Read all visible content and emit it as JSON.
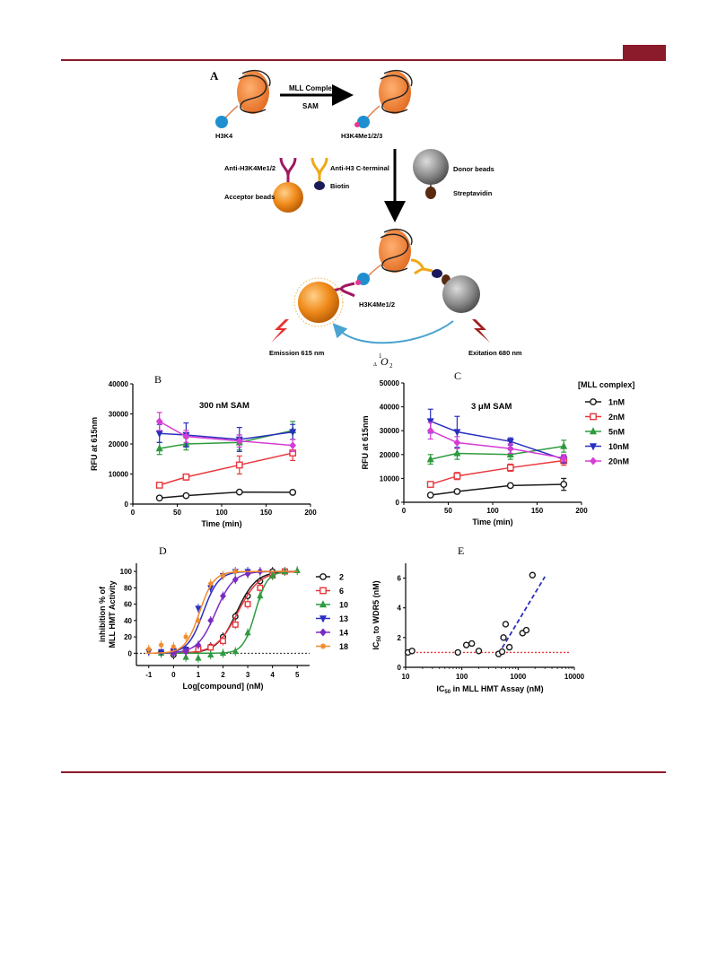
{
  "panels": {
    "A": {
      "letter": "A",
      "arrow_top": "MLL Complex",
      "arrow_bottom": "SAM",
      "left_label": "H3K4",
      "right_label": "H3K4Me1/2/3",
      "anti_me": "Anti-H3K4Me1/2",
      "acceptor": "Acceptor beads",
      "anti_cterm": "Anti-H3 C-terminal",
      "biotin": "Biotin",
      "donor": "Donor beads",
      "streptavidin": "Streptavidin",
      "complex_label": "H3K4Me1/2",
      "emission": "Emission 615 nm",
      "excitation": "Exitation 680 nm",
      "oxygen_sup": "1",
      "oxygen_sub": "Δ",
      "oxygen": "O",
      "oxygen_sub2": "2"
    },
    "B": {
      "letter": "B",
      "annotation": "300 nM SAM"
    },
    "C": {
      "letter": "C",
      "annotation": "3 μM  SAM",
      "legend_title": "[MLL complex]"
    },
    "D": {
      "letter": "D"
    },
    "E": {
      "letter": "E"
    }
  },
  "colors": {
    "black": "#1a1a1a",
    "red": "#e8383d",
    "green": "#2e9b3f",
    "blue": "#2a2fbf",
    "magenta": "#d63cd6",
    "purple": "#7b2bc2",
    "orange": "#f08a2a",
    "accent": "#8b1a2b"
  },
  "chart_data": [
    {
      "type": "line",
      "panel": "B",
      "xlabel": "Time (min)",
      "ylabel": "RFU at 615nm",
      "xlim": [
        0,
        200
      ],
      "ylim": [
        0,
        40000
      ],
      "xticks": [
        "0",
        "50",
        "100",
        "150",
        "200"
      ],
      "yticks": [
        "0",
        "10000",
        "20000",
        "30000",
        "40000"
      ],
      "x": [
        30,
        60,
        120,
        180
      ],
      "series": [
        {
          "name": "1nM",
          "color": "black",
          "marker": "circle",
          "values": [
            2000,
            2800,
            4000,
            3900
          ],
          "err": [
            300,
            300,
            300,
            300
          ]
        },
        {
          "name": "2nM",
          "color": "red",
          "marker": "square",
          "values": [
            6300,
            9000,
            13000,
            17000
          ],
          "err": [
            600,
            1000,
            3000,
            2500
          ]
        },
        {
          "name": "5nM",
          "color": "green",
          "marker": "triangle",
          "values": [
            18500,
            20000,
            20500,
            24500
          ],
          "err": [
            2000,
            2000,
            2500,
            3000
          ]
        },
        {
          "name": "10nM",
          "color": "blue",
          "marker": "triangle-down",
          "values": [
            23500,
            23000,
            21500,
            24000
          ],
          "err": [
            3000,
            4000,
            4000,
            2500
          ]
        },
        {
          "name": "20nM",
          "color": "magenta",
          "marker": "diamond",
          "values": [
            27500,
            22500,
            21000,
            19500
          ],
          "err": [
            3000,
            2000,
            2000,
            2000
          ]
        }
      ]
    },
    {
      "type": "line",
      "panel": "C",
      "xlabel": "Time (min)",
      "ylabel": "RFU at 615nm",
      "xlim": [
        0,
        200
      ],
      "ylim": [
        0,
        50000
      ],
      "xticks": [
        "0",
        "50",
        "100",
        "150",
        "200"
      ],
      "yticks": [
        "0",
        "10000",
        "20000",
        "30000",
        "40000",
        "50000"
      ],
      "x": [
        30,
        60,
        120,
        180
      ],
      "series": [
        {
          "name": "1nM",
          "color": "black",
          "marker": "circle",
          "values": [
            3000,
            4500,
            7000,
            7500
          ],
          "err": [
            500,
            500,
            500,
            2500
          ]
        },
        {
          "name": "2nM",
          "color": "red",
          "marker": "square",
          "values": [
            7500,
            11000,
            14500,
            17500
          ],
          "err": [
            500,
            1500,
            1500,
            2000
          ]
        },
        {
          "name": "5nM",
          "color": "green",
          "marker": "triangle",
          "values": [
            18000,
            20500,
            20000,
            23500
          ],
          "err": [
            2000,
            2500,
            2000,
            2500
          ]
        },
        {
          "name": "10nM",
          "color": "blue",
          "marker": "triangle-down",
          "values": [
            34000,
            29500,
            25500,
            18000
          ],
          "err": [
            5000,
            6500,
            1500,
            1500
          ]
        },
        {
          "name": "20nM",
          "color": "magenta",
          "marker": "diamond",
          "values": [
            30000,
            25000,
            22500,
            18500
          ],
          "err": [
            3500,
            2500,
            2000,
            1500
          ]
        }
      ]
    },
    {
      "type": "scatter",
      "panel": "D",
      "xlabel": "Log[compound] (nM)",
      "ylabel": "inhibition % of MLL HMT Activity",
      "xlim": [
        -1.5,
        5.5
      ],
      "ylim": [
        -15,
        110
      ],
      "xticks": [
        "-1",
        "0",
        "1",
        "2",
        "3",
        "4",
        "5"
      ],
      "yticks": [
        "0",
        "20",
        "40",
        "60",
        "80",
        "100"
      ],
      "series": [
        {
          "name": "2",
          "color": "black",
          "marker": "circle",
          "ic50": 2.55,
          "hill": 1.1,
          "x": [
            -0.5,
            0,
            0.5,
            1,
            1.5,
            2,
            2.5,
            3,
            3.5,
            4
          ],
          "values": [
            1,
            -2,
            3,
            5,
            8,
            20,
            45,
            70,
            88,
            100
          ]
        },
        {
          "name": "6",
          "color": "red",
          "marker": "square",
          "ic50": 2.6,
          "hill": 1.0,
          "x": [
            0,
            0.5,
            1,
            1.5,
            2,
            2.5,
            3,
            3.5,
            4,
            4.5
          ],
          "values": [
            2,
            3,
            5,
            7,
            15,
            35,
            60,
            80,
            95,
            100
          ]
        },
        {
          "name": "10",
          "color": "green",
          "marker": "triangle",
          "ic50": 3.3,
          "hill": 1.8,
          "x": [
            -0.5,
            0,
            0.5,
            1,
            1.5,
            2,
            2.5,
            3,
            3.5,
            4,
            4.5,
            5
          ],
          "values": [
            0,
            2,
            -5,
            -6,
            -2,
            0,
            2,
            25,
            70,
            95,
            100,
            101
          ]
        },
        {
          "name": "13",
          "color": "blue",
          "marker": "triangle-down",
          "ic50": 1.2,
          "hill": 1.4,
          "x": [
            -1,
            -0.5,
            0,
            0.5,
            1,
            1.5,
            2,
            2.5,
            3
          ],
          "values": [
            2,
            2,
            3,
            5,
            55,
            80,
            95,
            100,
            100
          ]
        },
        {
          "name": "14",
          "color": "purple",
          "marker": "diamond",
          "ic50": 1.7,
          "hill": 1.2,
          "x": [
            0,
            0.5,
            1,
            1.5,
            2,
            2.5,
            3,
            3.5
          ],
          "values": [
            0,
            2,
            10,
            40,
            70,
            90,
            97,
            100
          ]
        },
        {
          "name": "18",
          "color": "orange",
          "marker": "star",
          "ic50": 1.05,
          "hill": 1.5,
          "x": [
            -1,
            -0.5,
            0,
            0.5,
            1,
            1.5,
            2,
            2.5
          ],
          "values": [
            5,
            10,
            8,
            20,
            40,
            85,
            95,
            100
          ]
        }
      ]
    },
    {
      "type": "scatter",
      "panel": "E",
      "xlabel": "IC50 in MLL HMT Assay (nM)",
      "ylabel": "IC50 to WDR5 (nM)",
      "xscale": "log",
      "xlim": [
        10,
        10000
      ],
      "ylim": [
        0,
        7
      ],
      "xticks": [
        "10",
        "100",
        "1000",
        "10000"
      ],
      "yticks": [
        "0",
        "2",
        "4",
        "6"
      ],
      "x": [
        11,
        13,
        85,
        120,
        150,
        200,
        450,
        520,
        550,
        600,
        700,
        1200,
        1400,
        1800
      ],
      "values": [
        1.0,
        1.1,
        1.0,
        1.5,
        1.6,
        1.1,
        0.9,
        1.05,
        2.0,
        2.9,
        1.35,
        2.3,
        2.5,
        6.2
      ],
      "reference_line": {
        "y": 1,
        "style": "dotted",
        "color": "red"
      },
      "fit_line": {
        "x": [
          450,
          3000
        ],
        "y": [
          0.9,
          6.1
        ],
        "style": "dashed",
        "color": "blue"
      }
    }
  ]
}
